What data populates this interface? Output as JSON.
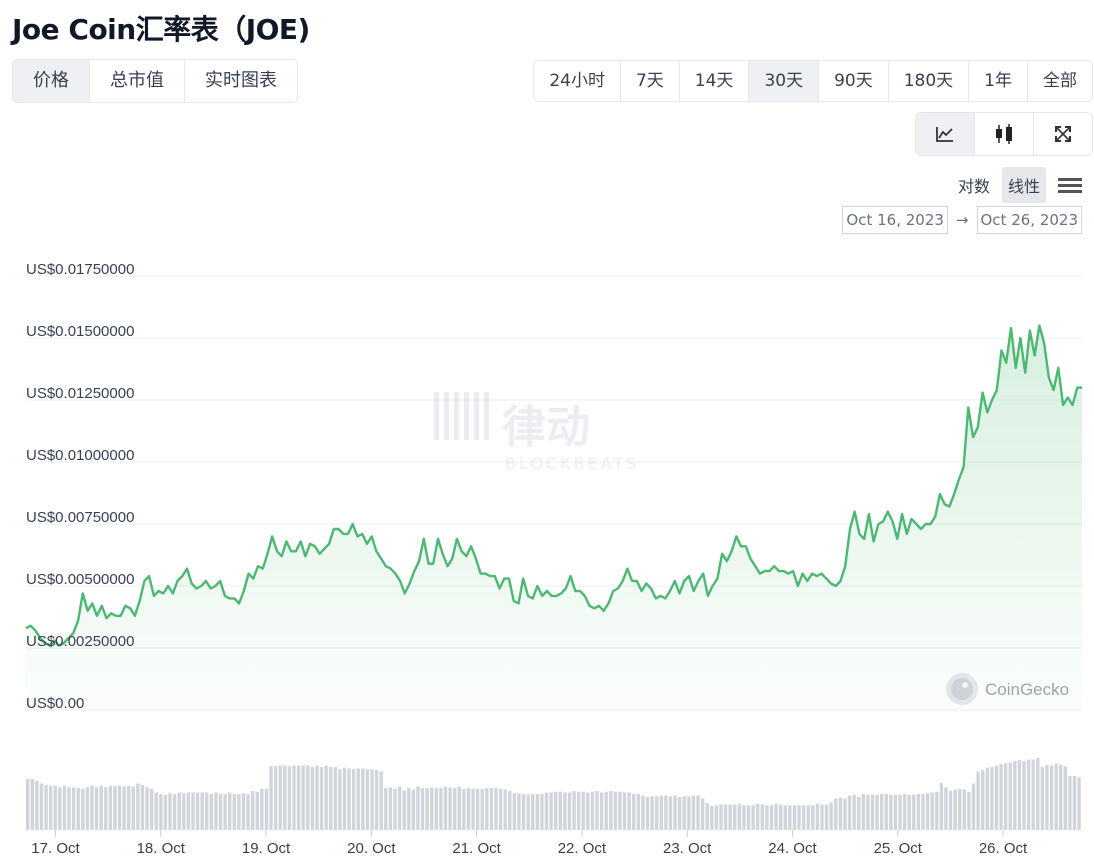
{
  "title": "Joe Coin汇率表（JOE)",
  "tabs": [
    "价格",
    "总市值",
    "实时图表"
  ],
  "ranges": [
    "24小时",
    "7天",
    "14天",
    "30天",
    "90天",
    "180天",
    "1年",
    "全部"
  ],
  "active_range": "30天",
  "chart_types": [
    "line-chart-icon",
    "candlestick-icon",
    "expand-icon"
  ],
  "scale_options": {
    "log": "对数",
    "linear": "线性"
  },
  "date_from": "Oct 16, 2023",
  "date_arrow": "→",
  "date_to": "Oct 26, 2023",
  "watermark": {
    "brand": "律动",
    "sub": "BLOCKBEATS"
  },
  "coingecko_label": "CoinGecko",
  "colors": {
    "line": "#4cb872",
    "accent_bg": "#eef0f3",
    "volume": "#d1d5db"
  },
  "chart_data": {
    "type": "area",
    "title": "",
    "xlabel": "",
    "ylabel": "",
    "ylim": [
      0,
      0.0175
    ],
    "y_ticks": [
      "US$0.01750000",
      "US$0.01500000",
      "US$0.01250000",
      "US$0.01000000",
      "US$0.00750000",
      "US$0.00500000",
      "US$0.00250000",
      "US$0.00"
    ],
    "y_tick_values": [
      0.0175,
      0.015,
      0.0125,
      0.01,
      0.0075,
      0.005,
      0.0025,
      0
    ],
    "x_ticks": [
      "17. Oct",
      "18. Oct",
      "19. Oct",
      "20. Oct",
      "21. Oct",
      "22. Oct",
      "23. Oct",
      "24. Oct",
      "25. Oct",
      "26. Oct"
    ],
    "x_tick_days": [
      17,
      18,
      19,
      20,
      21,
      22,
      23,
      24,
      25,
      26
    ],
    "x_start_day": 16.72,
    "x_end_day": 26.75,
    "series": [
      {
        "values": [
          0.0033,
          0.0034,
          0.0032,
          0.0029,
          0.0027,
          0.0026,
          0.0028,
          0.0026,
          0.0027,
          0.0029,
          0.0031,
          0.0036,
          0.0047,
          0.004,
          0.0043,
          0.0038,
          0.0042,
          0.0037,
          0.0039,
          0.0038,
          0.0038,
          0.0042,
          0.0041,
          0.0038,
          0.0044,
          0.0052,
          0.0054,
          0.0046,
          0.0048,
          0.0047,
          0.005,
          0.0047,
          0.0052,
          0.0054,
          0.0057,
          0.0051,
          0.0049,
          0.005,
          0.0052,
          0.0049,
          0.005,
          0.0052,
          0.0046,
          0.0045,
          0.0045,
          0.0043,
          0.0048,
          0.0055,
          0.0053,
          0.0058,
          0.0057,
          0.0063,
          0.007,
          0.0064,
          0.0062,
          0.0068,
          0.0064,
          0.0064,
          0.0068,
          0.0062,
          0.0067,
          0.0066,
          0.0063,
          0.0065,
          0.0067,
          0.0073,
          0.0073,
          0.0071,
          0.0071,
          0.0075,
          0.007,
          0.0071,
          0.0067,
          0.007,
          0.0064,
          0.0061,
          0.0058,
          0.0057,
          0.0055,
          0.0052,
          0.0047,
          0.0051,
          0.0056,
          0.006,
          0.0069,
          0.0059,
          0.0059,
          0.0069,
          0.0063,
          0.0058,
          0.0061,
          0.0069,
          0.0064,
          0.0062,
          0.0066,
          0.0061,
          0.0055,
          0.0055,
          0.0054,
          0.0054,
          0.0049,
          0.0053,
          0.0053,
          0.0044,
          0.0043,
          0.0053,
          0.0046,
          0.0045,
          0.005,
          0.0046,
          0.0048,
          0.0046,
          0.0046,
          0.0047,
          0.0049,
          0.0054,
          0.0048,
          0.0048,
          0.0046,
          0.0042,
          0.0041,
          0.0042,
          0.004,
          0.0043,
          0.0048,
          0.0049,
          0.0052,
          0.0057,
          0.0052,
          0.0052,
          0.0048,
          0.0051,
          0.0049,
          0.0045,
          0.0046,
          0.0045,
          0.0048,
          0.0052,
          0.0047,
          0.0052,
          0.0054,
          0.0048,
          0.0052,
          0.0055,
          0.0046,
          0.005,
          0.0053,
          0.0063,
          0.006,
          0.0064,
          0.007,
          0.0066,
          0.0066,
          0.0061,
          0.0058,
          0.0055,
          0.0056,
          0.0056,
          0.0058,
          0.0056,
          0.0056,
          0.0055,
          0.0056,
          0.005,
          0.0055,
          0.0052,
          0.0055,
          0.0054,
          0.0055,
          0.0053,
          0.0051,
          0.005,
          0.0052,
          0.0058,
          0.0073,
          0.008,
          0.0071,
          0.0069,
          0.0079,
          0.0068,
          0.0075,
          0.0076,
          0.008,
          0.0076,
          0.0069,
          0.0079,
          0.0071,
          0.0077,
          0.0075,
          0.0073,
          0.0075,
          0.0075,
          0.0078,
          0.0087,
          0.0083,
          0.0082,
          0.0087,
          0.0093,
          0.0098,
          0.0122,
          0.011,
          0.0114,
          0.0128,
          0.012,
          0.0125,
          0.0129,
          0.0145,
          0.014,
          0.0154,
          0.0138,
          0.015,
          0.0136,
          0.0153,
          0.0143,
          0.0155,
          0.0148,
          0.0134,
          0.0129,
          0.0138,
          0.0123,
          0.0126,
          0.0123,
          0.013,
          0.013
        ]
      }
    ],
    "volume_levels": [
      0.68,
      0.68,
      0.66,
      0.62,
      0.6,
      0.59,
      0.59,
      0.57,
      0.59,
      0.57,
      0.57,
      0.56,
      0.55,
      0.57,
      0.59,
      0.57,
      0.59,
      0.57,
      0.59,
      0.59,
      0.59,
      0.58,
      0.59,
      0.58,
      0.62,
      0.6,
      0.57,
      0.55,
      0.5,
      0.48,
      0.47,
      0.49,
      0.48,
      0.5,
      0.49,
      0.5,
      0.5,
      0.5,
      0.5,
      0.5,
      0.48,
      0.5,
      0.48,
      0.48,
      0.5,
      0.48,
      0.48,
      0.49,
      0.48,
      0.52,
      0.51,
      0.55,
      0.55,
      0.85,
      0.85,
      0.86,
      0.86,
      0.85,
      0.86,
      0.86,
      0.86,
      0.86,
      0.84,
      0.86,
      0.84,
      0.86,
      0.84,
      0.84,
      0.81,
      0.83,
      0.82,
      0.81,
      0.82,
      0.82,
      0.81,
      0.81,
      0.8,
      0.78,
      0.56,
      0.57,
      0.55,
      0.58,
      0.53,
      0.56,
      0.54,
      0.58,
      0.56,
      0.56,
      0.57,
      0.56,
      0.56,
      0.58,
      0.57,
      0.56,
      0.58,
      0.55,
      0.56,
      0.55,
      0.55,
      0.55,
      0.56,
      0.56,
      0.56,
      0.55,
      0.54,
      0.52,
      0.49,
      0.49,
      0.48,
      0.47,
      0.48,
      0.48,
      0.48,
      0.5,
      0.5,
      0.51,
      0.51,
      0.5,
      0.5,
      0.52,
      0.51,
      0.51,
      0.5,
      0.51,
      0.52,
      0.5,
      0.51,
      0.52,
      0.51,
      0.51,
      0.5,
      0.5,
      0.48,
      0.48,
      0.46,
      0.44,
      0.45,
      0.45,
      0.46,
      0.46,
      0.45,
      0.46,
      0.44,
      0.45,
      0.45,
      0.46,
      0.46,
      0.42,
      0.36,
      0.32,
      0.33,
      0.34,
      0.34,
      0.34,
      0.34,
      0.35,
      0.33,
      0.33,
      0.33,
      0.35,
      0.34,
      0.33,
      0.33,
      0.35,
      0.34,
      0.33,
      0.33,
      0.33,
      0.33,
      0.33,
      0.33,
      0.33,
      0.35,
      0.34,
      0.34,
      0.37,
      0.42,
      0.43,
      0.42,
      0.46,
      0.47,
      0.44,
      0.48,
      0.47,
      0.47,
      0.47,
      0.48,
      0.48,
      0.47,
      0.47,
      0.47,
      0.48,
      0.47,
      0.47,
      0.48,
      0.48,
      0.49,
      0.5,
      0.51,
      0.63,
      0.57,
      0.52,
      0.54,
      0.55,
      0.54,
      0.51,
      0.62,
      0.78,
      0.8,
      0.83,
      0.84,
      0.86,
      0.88,
      0.89,
      0.9,
      0.92,
      0.93,
      0.92,
      0.94,
      0.94,
      0.96,
      0.84,
      0.87,
      0.86,
      0.88,
      0.87,
      0.85,
      0.72,
      0.72,
      0.7
    ]
  }
}
